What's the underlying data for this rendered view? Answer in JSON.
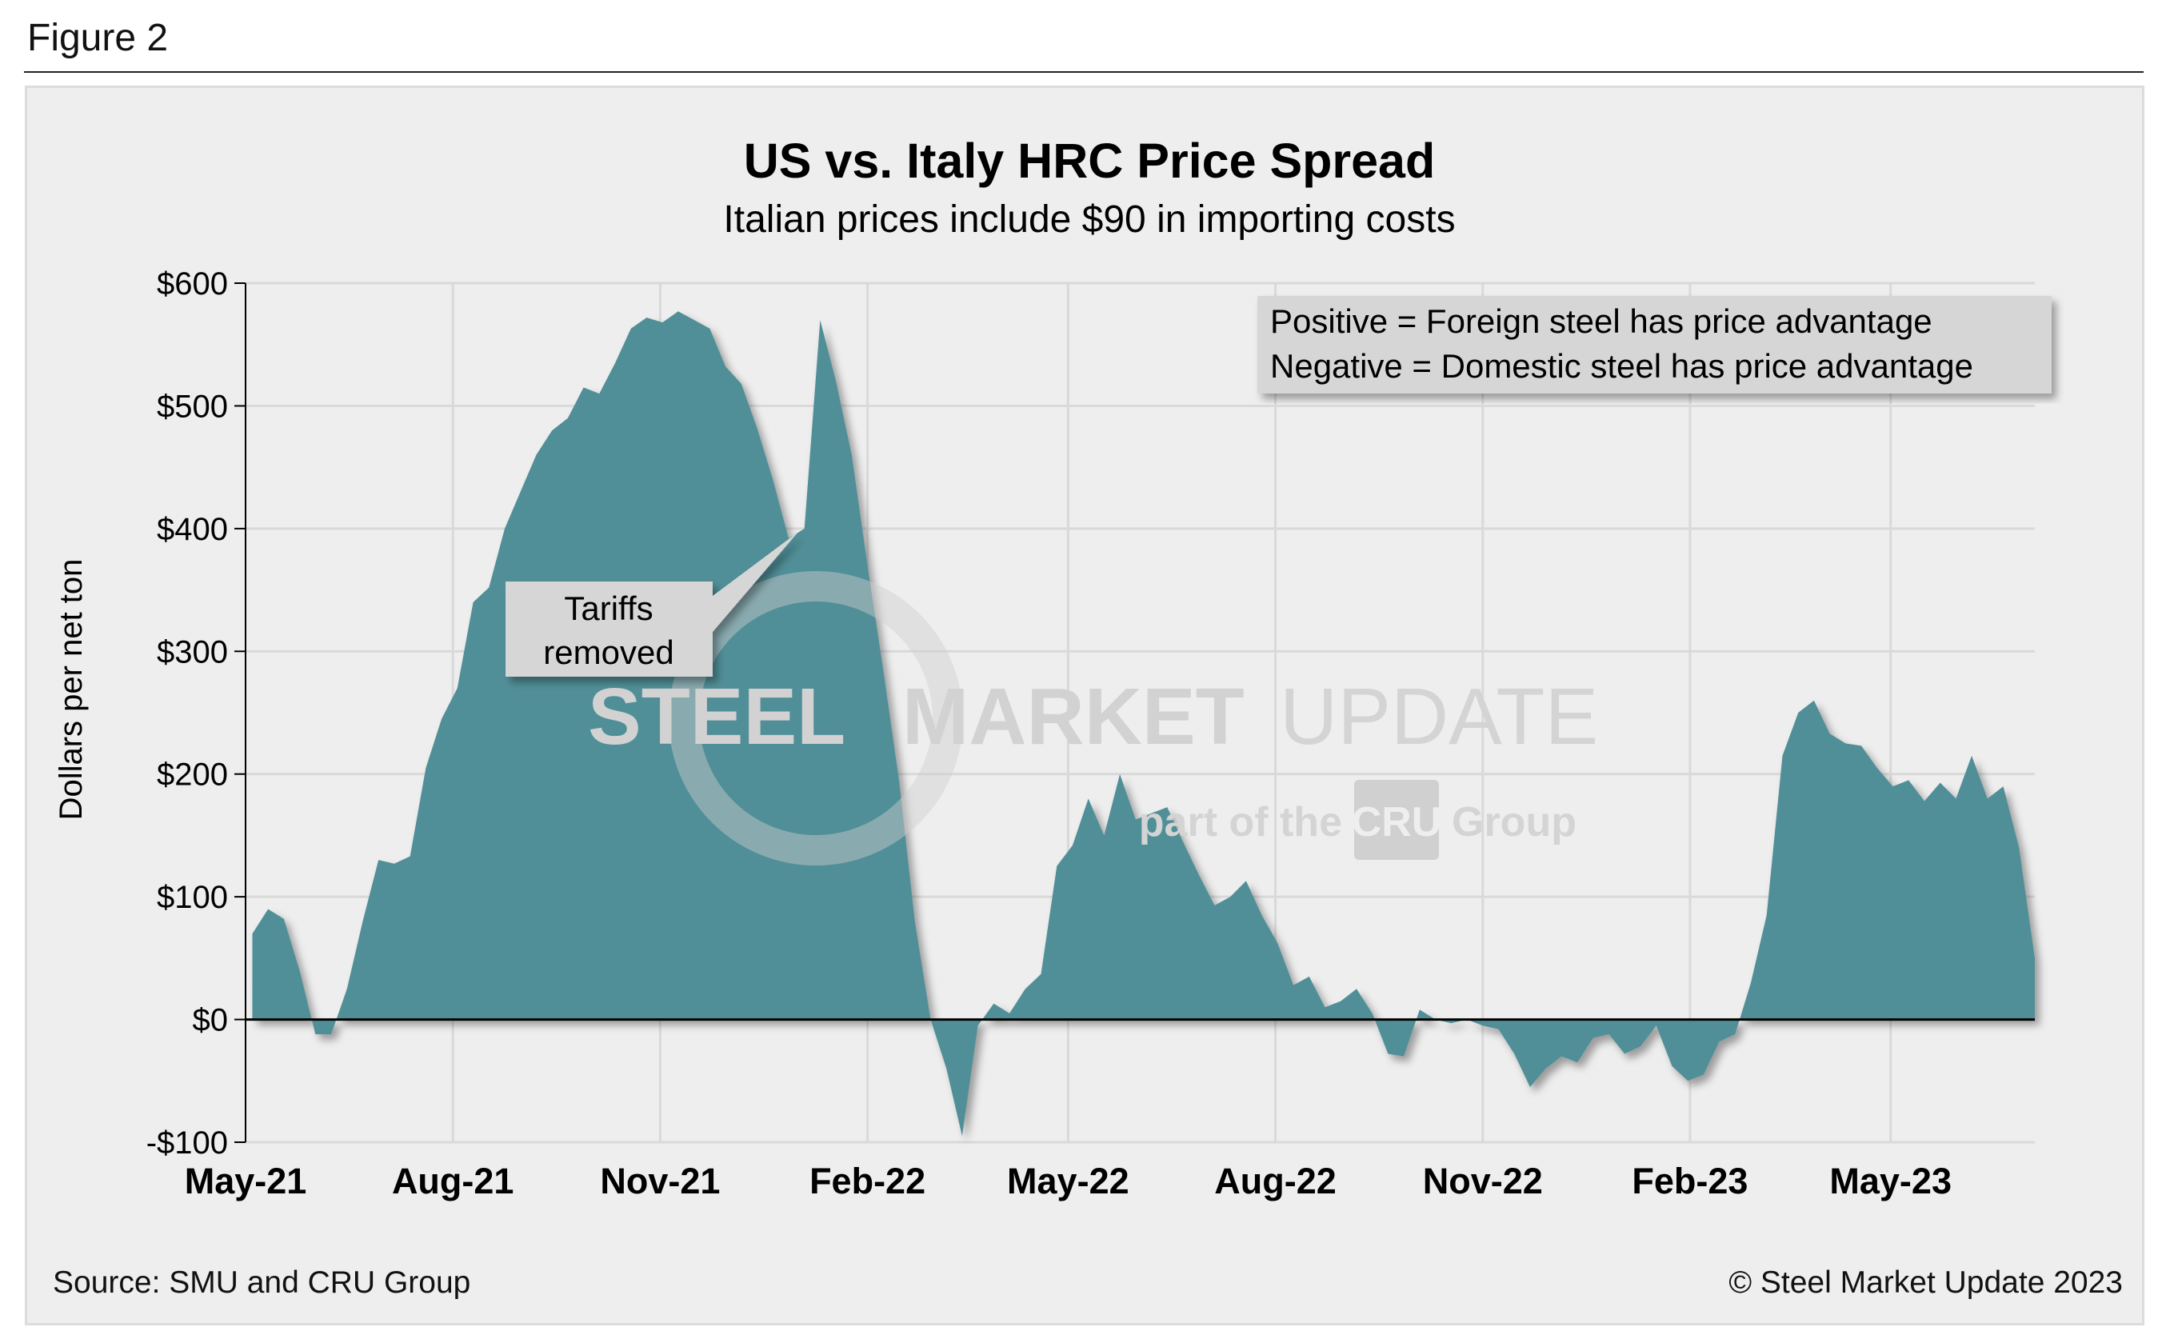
{
  "figure_label": "Figure 2",
  "footer": {
    "source": "Source: SMU and CRU Group",
    "copyright": "© Steel Market Update 2023"
  },
  "watermark": {
    "line1a": "STEEL",
    "line1b": "MARKET",
    "line1c": "UPDATE",
    "line2a": "part of the",
    "logo": "CRU",
    "line2b": "Group"
  },
  "colors": {
    "fill": "#518f98",
    "background": "#eeeeee",
    "grid": "#d9d9d9",
    "callout": "#d6d6d6"
  },
  "chart_data": {
    "type": "area",
    "title": "US vs. Italy HRC Price Spread",
    "subtitle": "Italian prices include $90 in importing costs",
    "ylabel": "Dollars per net ton",
    "xlabel": "",
    "ylim": [
      -100,
      600
    ],
    "yticks": [
      600,
      500,
      400,
      300,
      200,
      100,
      0,
      -100
    ],
    "ytick_labels": [
      "$600",
      "$500",
      "$400",
      "$300",
      "$200",
      "$100",
      "$0",
      "-$100"
    ],
    "xlim": [
      "2021-05-01",
      "2023-07-04"
    ],
    "xticks": [
      "2021-05-01",
      "2021-08-01",
      "2021-11-01",
      "2022-02-01",
      "2022-05-01",
      "2022-08-01",
      "2022-11-01",
      "2023-02-01",
      "2023-05-01"
    ],
    "xtick_labels": [
      "May-21",
      "Aug-21",
      "Nov-21",
      "Feb-22",
      "May-22",
      "Aug-22",
      "Nov-22",
      "Feb-23",
      "May-23"
    ],
    "grid": true,
    "legend_box": [
      "Positive = Foreign steel has price advantage",
      "Negative = Domestic steel has price advantage"
    ],
    "legend_placement": "top-right",
    "annotations": [
      {
        "text_line1": "Tariffs",
        "text_line2": "removed",
        "x": "2021-12-28",
        "y": 400
      }
    ],
    "x": [
      "2021-05-04",
      "2021-05-11",
      "2021-05-18",
      "2021-05-25",
      "2021-06-01",
      "2021-06-08",
      "2021-06-15",
      "2021-06-22",
      "2021-06-29",
      "2021-07-06",
      "2021-07-13",
      "2021-07-20",
      "2021-07-27",
      "2021-08-03",
      "2021-08-10",
      "2021-08-17",
      "2021-08-24",
      "2021-08-31",
      "2021-09-07",
      "2021-09-14",
      "2021-09-21",
      "2021-09-28",
      "2021-10-05",
      "2021-10-12",
      "2021-10-19",
      "2021-10-26",
      "2021-11-02",
      "2021-11-09",
      "2021-11-16",
      "2021-11-23",
      "2021-11-30",
      "2021-12-07",
      "2021-12-14",
      "2021-12-21",
      "2021-12-28",
      "2022-01-04",
      "2022-01-11",
      "2022-01-18",
      "2022-01-25",
      "2022-02-01",
      "2022-02-08",
      "2022-02-15",
      "2022-02-22",
      "2022-03-01",
      "2022-03-08",
      "2022-03-15",
      "2022-03-22",
      "2022-03-29",
      "2022-04-05",
      "2022-04-12",
      "2022-04-19",
      "2022-04-26",
      "2022-05-03",
      "2022-05-10",
      "2022-05-17",
      "2022-05-24",
      "2022-05-31",
      "2022-06-07",
      "2022-06-14",
      "2022-06-21",
      "2022-06-28",
      "2022-07-05",
      "2022-07-12",
      "2022-07-19",
      "2022-07-26",
      "2022-08-02",
      "2022-08-09",
      "2022-08-16",
      "2022-08-23",
      "2022-08-30",
      "2022-09-06",
      "2022-09-13",
      "2022-09-20",
      "2022-09-27",
      "2022-10-04",
      "2022-10-11",
      "2022-10-18",
      "2022-10-25",
      "2022-11-01",
      "2022-11-08",
      "2022-11-15",
      "2022-11-22",
      "2022-11-29",
      "2022-12-06",
      "2022-12-13",
      "2022-12-20",
      "2022-12-27",
      "2023-01-03",
      "2023-01-10",
      "2023-01-17",
      "2023-01-24",
      "2023-01-31",
      "2023-02-07",
      "2023-02-14",
      "2023-02-21",
      "2023-02-28",
      "2023-03-07",
      "2023-03-14",
      "2023-03-21",
      "2023-03-28",
      "2023-04-04",
      "2023-04-11",
      "2023-04-18",
      "2023-04-25",
      "2023-05-02",
      "2023-05-09",
      "2023-05-16",
      "2023-05-23",
      "2023-05-30",
      "2023-06-06",
      "2023-06-13",
      "2023-06-20",
      "2023-06-27",
      "2023-07-04"
    ],
    "values": [
      70,
      90,
      82,
      40,
      -12,
      -12,
      25,
      80,
      130,
      127,
      133,
      205,
      245,
      270,
      340,
      352,
      400,
      430,
      460,
      480,
      490,
      515,
      510,
      535,
      563,
      572,
      568,
      577,
      570,
      563,
      532,
      518,
      482,
      440,
      392,
      400,
      570,
      520,
      460,
      370,
      285,
      195,
      80,
      0,
      -40,
      -95,
      -5,
      13,
      5,
      25,
      37,
      125,
      142,
      180,
      150,
      200,
      163,
      168,
      173,
      145,
      118,
      93,
      100,
      113,
      85,
      62,
      28,
      35,
      10,
      15,
      25,
      5,
      -28,
      -30,
      8,
      0,
      -3,
      0,
      -5,
      -8,
      -28,
      -55,
      -40,
      -30,
      -35,
      -15,
      -12,
      -28,
      -22,
      -5,
      -38,
      -50,
      -45,
      -18,
      -12,
      30,
      85,
      215,
      250,
      260,
      233,
      225,
      223,
      205,
      190,
      195,
      178,
      193,
      180,
      215,
      180,
      190,
      140,
      50
    ]
  }
}
